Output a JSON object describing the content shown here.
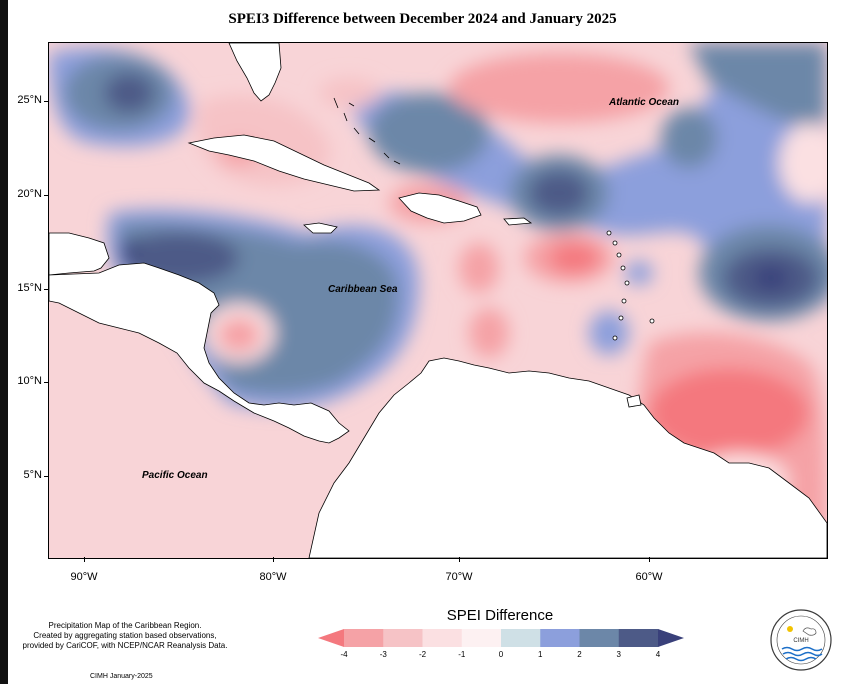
{
  "title": "SPEI3 Difference between December 2024 and January 2025",
  "axes": {
    "y_ticks": [
      "25°N",
      "20°N",
      "15°N",
      "10°N",
      "5°N"
    ],
    "x_ticks": [
      "90°W",
      "80°W",
      "70°W",
      "60°W"
    ]
  },
  "labels": {
    "atlantic": "Atlantic Ocean",
    "caribbean": "Caribbean Sea",
    "pacific": "Pacific Ocean"
  },
  "credit": {
    "line1": "Precipitation Map of the Caribbean Region.",
    "line2": "Created by aggregating station based observations,",
    "line3": "provided by CariCOF, with NCEP/NCAR Reanalysis Data.",
    "date": "CIMH January-2025"
  },
  "legend": {
    "title": "SPEI Difference",
    "ticks": [
      "-4",
      "-3",
      "-2",
      "-1",
      "0",
      "1",
      "2",
      "3",
      "4"
    ],
    "colors": [
      "#f4787e",
      "#f5a2a6",
      "#f6c3c6",
      "#fbe0e2",
      "#fdf1f2",
      "#cfe0e6",
      "#8c9fdc",
      "#6c87a8",
      "#4d5a87",
      "#39407a"
    ]
  },
  "logo": {
    "text": "CIMH"
  }
}
